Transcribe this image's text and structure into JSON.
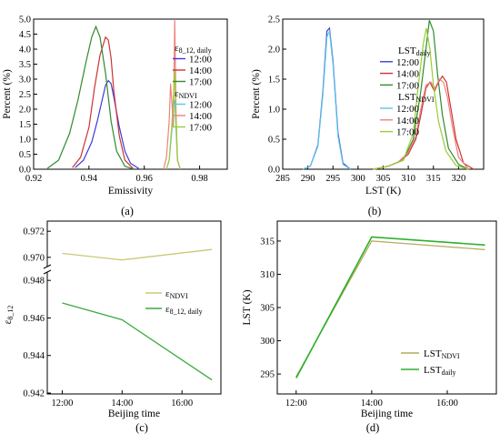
{
  "chart_data": [
    {
      "id": "a",
      "type": "line",
      "panel_label": "(a)",
      "xlabel": "Emissivity",
      "ylabel": "Percent (%)",
      "xlim": [
        0.92,
        0.99
      ],
      "ylim": [
        0,
        5.0
      ],
      "xticks": [
        0.92,
        0.94,
        0.96,
        0.98
      ],
      "xtick_labels": [
        "0.92",
        "0.94",
        "0.96",
        "0.98"
      ],
      "yticks": [
        0,
        0.5,
        1,
        1.5,
        2,
        2.5,
        3,
        3.5,
        4,
        4.5,
        5
      ],
      "ytick_labels": [
        "0.0",
        "0.5",
        "1.0",
        "1.5",
        "2.0",
        "2.5",
        "3.0",
        "3.5",
        "4.0",
        "4.5",
        "5.0"
      ],
      "legend_groups": [
        {
          "title": "ε8_12, daily",
          "entries": [
            "12:00",
            "14:00",
            "17:00"
          ]
        },
        {
          "title": "εNDVI",
          "entries": [
            "12:00",
            "14:00",
            "17:00"
          ]
        }
      ],
      "series": [
        {
          "group": 0,
          "name": "12:00",
          "color": "#3c3cd6",
          "x": [
            0.935,
            0.938,
            0.941,
            0.943,
            0.945,
            0.946,
            0.947,
            0.948,
            0.949,
            0.951,
            0.953,
            0.955,
            0.958
          ],
          "y": [
            0.05,
            0.3,
            0.9,
            1.6,
            2.4,
            2.8,
            2.95,
            2.85,
            2.4,
            1.4,
            0.6,
            0.2,
            0.02
          ]
        },
        {
          "group": 0,
          "name": "14:00",
          "color": "#cc3333",
          "x": [
            0.934,
            0.937,
            0.94,
            0.942,
            0.944,
            0.946,
            0.947,
            0.948,
            0.949,
            0.951,
            0.953,
            0.956
          ],
          "y": [
            0.05,
            0.4,
            1.4,
            2.7,
            3.8,
            4.4,
            4.3,
            3.7,
            2.6,
            1.1,
            0.3,
            0.02
          ]
        },
        {
          "group": 0,
          "name": "17:00",
          "color": "#2e8b2e",
          "x": [
            0.925,
            0.929,
            0.933,
            0.936,
            0.939,
            0.941,
            0.9425,
            0.944,
            0.946,
            0.948,
            0.95,
            0.953,
            0.956
          ],
          "y": [
            0.03,
            0.3,
            1.2,
            2.3,
            3.6,
            4.4,
            4.75,
            4.4,
            3.2,
            1.6,
            0.6,
            0.1,
            0.01
          ]
        },
        {
          "group": 1,
          "name": "12:00",
          "color": "#5bc6e6",
          "x": [
            0.968,
            0.969,
            0.97,
            0.9705,
            0.971,
            0.9715,
            0.972,
            0.973
          ],
          "y": [
            0,
            0.3,
            1.3,
            2.1,
            2.3,
            1.3,
            0.3,
            0
          ]
        },
        {
          "group": 1,
          "name": "14:00",
          "color": "#f08080",
          "x": [
            0.967,
            0.968,
            0.969,
            0.9695,
            0.97,
            0.9705,
            0.971,
            0.9715,
            0.972,
            0.973
          ],
          "y": [
            0,
            0.4,
            1.6,
            2.85,
            2.2,
            1.4,
            5.0,
            1.8,
            0.3,
            0
          ]
        },
        {
          "group": 1,
          "name": "17:00",
          "color": "#9acd32",
          "x": [
            0.968,
            0.969,
            0.97,
            0.9705,
            0.971,
            0.9715,
            0.972,
            0.973
          ],
          "y": [
            0,
            0.3,
            1.5,
            2.4,
            3.3,
            1.6,
            0.3,
            0
          ]
        }
      ]
    },
    {
      "id": "b",
      "type": "line",
      "panel_label": "(b)",
      "xlabel": "LST (K)",
      "ylabel": "Percent (%)",
      "xlim": [
        285,
        325
      ],
      "ylim": [
        0,
        2.5
      ],
      "xticks": [
        285,
        290,
        295,
        300,
        305,
        310,
        315,
        320
      ],
      "xtick_labels": [
        "285",
        "290",
        "295",
        "300",
        "305",
        "310",
        "315",
        "320"
      ],
      "yticks": [
        0,
        0.5,
        1,
        1.5,
        2,
        2.5
      ],
      "ytick_labels": [
        "0.0",
        "0.5",
        "1.0",
        "1.5",
        "2.0",
        "2.5"
      ],
      "legend_groups": [
        {
          "title": "LSTdaily",
          "entries": [
            "12:00",
            "14:00",
            "17:00"
          ]
        },
        {
          "title": "LSTNDVI",
          "entries": [
            "12:00",
            "14:00",
            "17:00"
          ]
        }
      ],
      "series": [
        {
          "group": 0,
          "name": "12:00",
          "color": "#3c3cd6",
          "x": [
            289,
            290.5,
            292,
            293,
            293.8,
            294.3,
            295,
            296,
            297,
            298.5
          ],
          "y": [
            0,
            0.05,
            0.4,
            1.3,
            2.3,
            2.35,
            1.8,
            0.6,
            0.1,
            0
          ]
        },
        {
          "group": 0,
          "name": "14:00",
          "color": "#cc3333",
          "x": [
            303,
            306,
            308,
            310,
            311.5,
            312.5,
            313.5,
            314.3,
            315.2,
            316,
            316.8,
            317.6,
            318.5,
            319.5,
            321,
            323
          ],
          "y": [
            0,
            0.05,
            0.12,
            0.25,
            0.5,
            0.9,
            1.35,
            1.45,
            1.3,
            1.45,
            1.55,
            1.45,
            1.0,
            0.5,
            0.1,
            0
          ]
        },
        {
          "group": 0,
          "name": "17:00",
          "color": "#2e8b2e",
          "x": [
            303,
            306,
            309,
            311,
            312.5,
            313.5,
            314.2,
            315,
            315.8,
            316.8,
            318,
            320,
            322
          ],
          "y": [
            0,
            0.05,
            0.15,
            0.5,
            1.3,
            2.0,
            2.48,
            2.3,
            1.6,
            0.9,
            0.35,
            0.08,
            0
          ]
        },
        {
          "group": 1,
          "name": "12:00",
          "color": "#5bc6e6",
          "x": [
            289,
            290.5,
            292,
            293,
            293.8,
            294.3,
            295,
            296,
            297,
            298.5
          ],
          "y": [
            0,
            0.05,
            0.38,
            1.25,
            2.2,
            2.3,
            1.75,
            0.55,
            0.08,
            0
          ]
        },
        {
          "group": 1,
          "name": "14:00",
          "color": "#f08080",
          "x": [
            303,
            306,
            308,
            310,
            311.5,
            312.5,
            313.5,
            314.5,
            315.3,
            316.2,
            317,
            317.8,
            318.8,
            320,
            322
          ],
          "y": [
            0,
            0.05,
            0.12,
            0.28,
            0.55,
            1.0,
            1.4,
            1.45,
            1.35,
            1.5,
            1.45,
            1.2,
            0.7,
            0.2,
            0
          ]
        },
        {
          "group": 1,
          "name": "17:00",
          "color": "#9acd32",
          "x": [
            303,
            306,
            309,
            311,
            312,
            313,
            313.6,
            314.3,
            315,
            316,
            317.5,
            319.5,
            322
          ],
          "y": [
            0,
            0.05,
            0.15,
            0.6,
            1.4,
            2.1,
            2.35,
            2.0,
            1.4,
            0.8,
            0.3,
            0.06,
            0
          ]
        }
      ]
    },
    {
      "id": "c",
      "type": "line",
      "panel_label": "(c)",
      "xlabel": "Beijing time",
      "ylabel": "ε8_12",
      "xticks": [
        12,
        14,
        16
      ],
      "xtick_labels": [
        "12:00",
        "14:00",
        "16:00"
      ],
      "xlim": [
        11.5,
        17.3
      ],
      "broken_axis": true,
      "upper_ylim": [
        0.9695,
        0.9725
      ],
      "upper_yticks": [
        0.97,
        0.972
      ],
      "upper_ytick_labels": [
        "0.970",
        "0.972"
      ],
      "lower_ylim": [
        0.942,
        0.9483
      ],
      "lower_yticks": [
        0.942,
        0.944,
        0.946,
        0.948
      ],
      "lower_ytick_labels": [
        "0.942",
        "0.944",
        "0.946",
        "0.948"
      ],
      "series": [
        {
          "name": "εNDVI",
          "legend_main": "ε",
          "legend_sub": "NDVI",
          "color": "#c9c97a",
          "x": [
            12,
            14,
            17
          ],
          "y": [
            0.9703,
            0.9698,
            0.9706
          ]
        },
        {
          "name": "ε8_12, daily",
          "legend_main": "ε",
          "legend_sub": "8_12, daily",
          "color": "#3daa3d",
          "x": [
            12,
            14,
            17
          ],
          "y": [
            0.9468,
            0.9459,
            0.9427
          ]
        }
      ]
    },
    {
      "id": "d",
      "type": "line",
      "panel_label": "(d)",
      "xlabel": "Beijing time",
      "ylabel": "LST (K)",
      "xticks": [
        12,
        14,
        16
      ],
      "xtick_labels": [
        "12:00",
        "14:00",
        "16:00"
      ],
      "xlim": [
        11.5,
        17.3
      ],
      "ylim": [
        292,
        318
      ],
      "yticks": [
        295,
        300,
        305,
        310,
        315
      ],
      "ytick_labels": [
        "295",
        "300",
        "305",
        "310",
        "315"
      ],
      "series": [
        {
          "name": "LSTNDVI",
          "legend_main": "LST",
          "legend_sub": "NDVI",
          "color": "#b5a85a",
          "x": [
            12,
            14,
            17
          ],
          "y": [
            294.6,
            315.0,
            313.7
          ]
        },
        {
          "name": "LSTdaily",
          "legend_main": "LST",
          "legend_sub": "daily",
          "color": "#2bb02b",
          "x": [
            12,
            14,
            17
          ],
          "y": [
            294.4,
            315.6,
            314.4
          ]
        }
      ]
    }
  ]
}
